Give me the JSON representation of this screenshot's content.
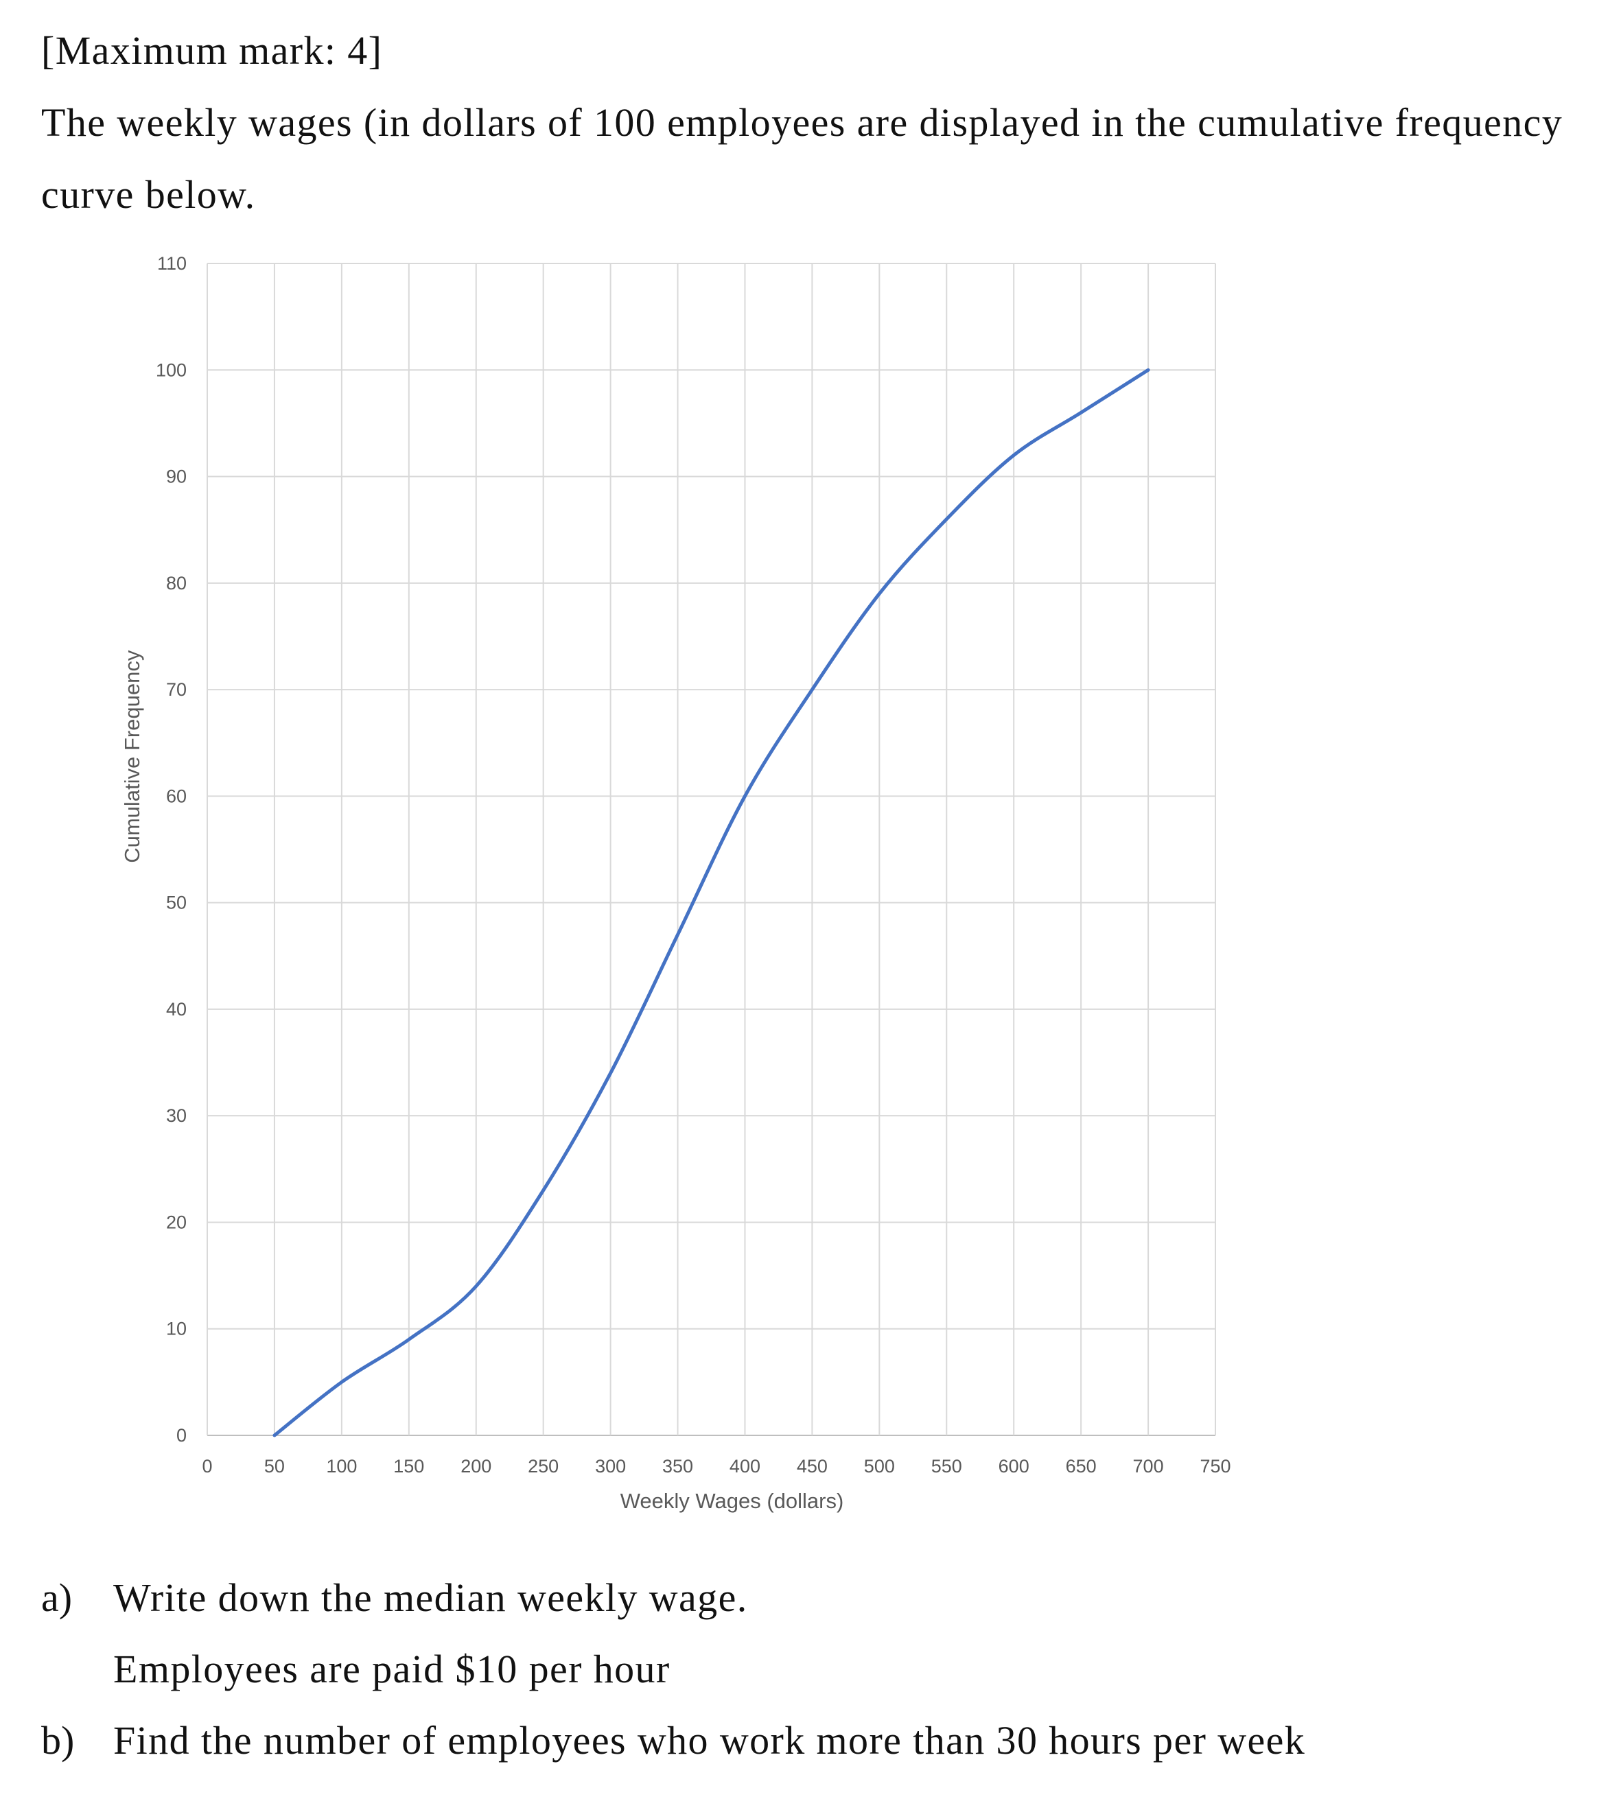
{
  "question": {
    "max_mark": "[Maximum mark: 4]",
    "intro_line1": "The weekly wages (in dollars of 100 employees are displayed in the cumulative frequency",
    "intro_line2": "curve below.",
    "part_a_label": "a)",
    "part_a": "Write down the median weekly wage.",
    "info": "Employees are paid $10 per hour",
    "part_b_label": "b)",
    "part_b": "Find the number of employees who work more than 30 hours per week"
  },
  "chart_data": {
    "type": "line",
    "title": "",
    "xlabel": "Weekly Wages (dollars)",
    "ylabel": "Cumulative Frequency",
    "xlim": [
      0,
      750
    ],
    "ylim": [
      0,
      110
    ],
    "xticks": [
      0,
      50,
      100,
      150,
      200,
      250,
      300,
      350,
      400,
      450,
      500,
      550,
      600,
      650,
      700,
      750
    ],
    "yticks": [
      0,
      10,
      20,
      30,
      40,
      50,
      60,
      70,
      80,
      90,
      100,
      110
    ],
    "grid": true,
    "line_color": "#4472C4",
    "grid_color": "#D9D9D9",
    "x": [
      50,
      100,
      150,
      200,
      250,
      300,
      350,
      400,
      450,
      500,
      550,
      600,
      650,
      700
    ],
    "y": [
      0,
      5,
      9,
      14,
      23,
      34,
      47,
      60,
      70,
      79,
      86,
      92,
      96,
      100
    ]
  }
}
